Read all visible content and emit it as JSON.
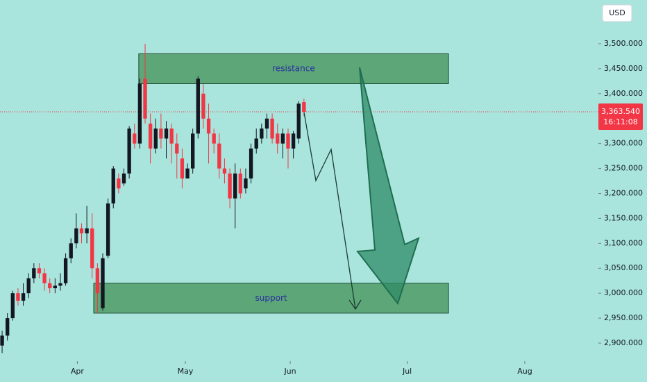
{
  "chart_data": {
    "type": "candlestick",
    "currency": "USD",
    "x": [
      0,
      1,
      2,
      3,
      4,
      5,
      6,
      7,
      8,
      9,
      10,
      11,
      12,
      13,
      14,
      15,
      16,
      17,
      18,
      19,
      20,
      21,
      22,
      23,
      24,
      25,
      26,
      27,
      28,
      29,
      30,
      31,
      32,
      33,
      34,
      35,
      36,
      37,
      38,
      39,
      40,
      41,
      42,
      43,
      44,
      45,
      46,
      47,
      48,
      49,
      50,
      51,
      52,
      53,
      54,
      55,
      56,
      57
    ],
    "open": [
      2895,
      2915,
      2950,
      3000,
      2985,
      3000,
      3030,
      3050,
      3040,
      3020,
      3010,
      3015,
      3020,
      3070,
      3100,
      3130,
      3120,
      3130,
      3050,
      2970,
      3075,
      3180,
      3230,
      3220,
      3240,
      3320,
      3300,
      3430,
      3340,
      3290,
      3330,
      3310,
      3330,
      3300,
      3270,
      3230,
      3250,
      3320,
      3400,
      3350,
      3320,
      3300,
      3250,
      3240,
      3190,
      3240,
      3210,
      3230,
      3290,
      3310,
      3330,
      3350,
      3320,
      3300,
      3320,
      3290,
      3310,
      3383
    ],
    "high": [
      2925,
      2960,
      3005,
      3010,
      3020,
      3040,
      3060,
      3060,
      3050,
      3030,
      3030,
      3040,
      3080,
      3110,
      3160,
      3140,
      3175,
      3160,
      3060,
      3080,
      3190,
      3255,
      3240,
      3250,
      3335,
      3340,
      3430,
      3500,
      3360,
      3350,
      3360,
      3345,
      3340,
      3320,
      3290,
      3260,
      3330,
      3435,
      3420,
      3380,
      3330,
      3320,
      3270,
      3250,
      3260,
      3250,
      3250,
      3300,
      3330,
      3340,
      3360,
      3360,
      3340,
      3330,
      3330,
      3325,
      3385,
      3390
    ],
    "low": [
      2880,
      2905,
      2945,
      2975,
      2975,
      2990,
      3020,
      3030,
      3005,
      3000,
      3000,
      3005,
      3015,
      3060,
      3090,
      3100,
      3100,
      3030,
      2960,
      2965,
      3070,
      3170,
      3200,
      3215,
      3230,
      3290,
      3290,
      3340,
      3260,
      3280,
      3290,
      3270,
      3260,
      3230,
      3210,
      3230,
      3240,
      3310,
      3330,
      3260,
      3280,
      3230,
      3220,
      3170,
      3130,
      3190,
      3200,
      3220,
      3280,
      3300,
      3310,
      3300,
      3280,
      3270,
      3250,
      3270,
      3300,
      3355
    ],
    "close": [
      2915,
      2950,
      3000,
      2985,
      3000,
      3030,
      3050,
      3040,
      3020,
      3010,
      3015,
      3020,
      3070,
      3100,
      3130,
      3120,
      3130,
      3050,
      3000,
      3070,
      3180,
      3250,
      3210,
      3240,
      3330,
      3300,
      3420,
      3350,
      3290,
      3330,
      3310,
      3330,
      3300,
      3280,
      3230,
      3250,
      3320,
      3430,
      3350,
      3320,
      3300,
      3250,
      3240,
      3190,
      3240,
      3200,
      3230,
      3290,
      3310,
      3330,
      3350,
      3310,
      3300,
      3320,
      3290,
      3320,
      3380,
      3363.54
    ],
    "up_color": "#131722",
    "down_color": "#f23645",
    "xlim": [
      -0.4,
      112.6
    ],
    "xticks": [
      {
        "value": 14.2,
        "label": "Apr"
      },
      {
        "value": 34.6,
        "label": "May"
      },
      {
        "value": 54.4,
        "label": "Jun"
      },
      {
        "value": 76.5,
        "label": "Jul"
      },
      {
        "value": 98.7,
        "label": "Aug"
      }
    ],
    "ylim": [
      2863.8,
      3587.7
    ],
    "yticks": [
      {
        "value": 2900,
        "label": "2,900.000"
      },
      {
        "value": 2950,
        "label": "2,950.000"
      },
      {
        "value": 3000,
        "label": "3,000.000"
      },
      {
        "value": 3050,
        "label": "3,050.000"
      },
      {
        "value": 3100,
        "label": "3,100.000"
      },
      {
        "value": 3150,
        "label": "3,150.000"
      },
      {
        "value": 3200,
        "label": "3,200.000"
      },
      {
        "value": 3250,
        "label": "3,250.000"
      },
      {
        "value": 3300,
        "label": "3,300.000"
      },
      {
        "value": 3350,
        "label": "3,350.000"
      },
      {
        "value": 3400,
        "label": "3,400.000"
      },
      {
        "value": 3450,
        "label": "3,450.000"
      },
      {
        "value": 3500,
        "label": "3,500.000"
      }
    ],
    "last_price": {
      "value": 3363.54,
      "label": "3,363.540"
    },
    "countdown": "16:11:08",
    "zones": [
      {
        "label": "resistance",
        "low": 3420,
        "high": 3480,
        "x_start": 25.8,
        "x_end": 84.3,
        "color": "#4f9b66"
      },
      {
        "label": "support",
        "low": 2960,
        "high": 3020,
        "x_start": 17.3,
        "x_end": 84.3,
        "color": "#4f9b66"
      }
    ]
  }
}
